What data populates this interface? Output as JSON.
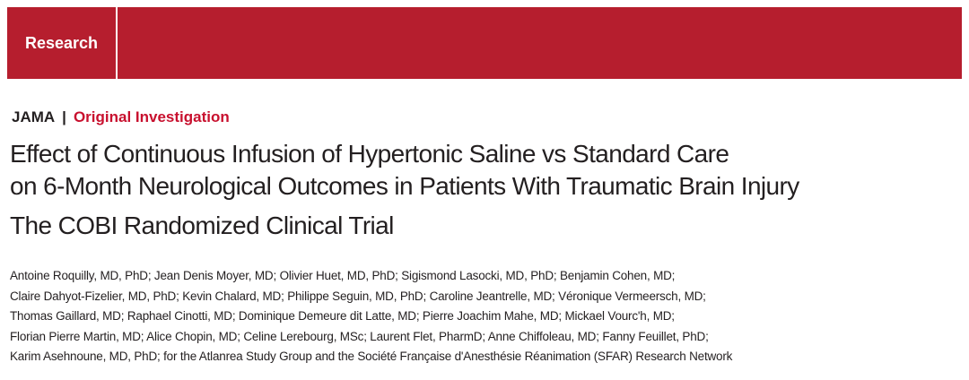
{
  "banner": {
    "label": "Research",
    "background_color": "#b61e2e"
  },
  "journal": {
    "name": "JAMA",
    "separator": "|",
    "article_type": "Original Investigation",
    "article_type_color": "#c8102e"
  },
  "article": {
    "title_lines": [
      "Effect of Continuous Infusion of Hypertonic Saline vs Standard Care",
      "on 6-Month Neurological Outcomes in Patients With Traumatic Brain Injury"
    ],
    "subtitle": "The COBI Randomized Clinical Trial",
    "author_lines": [
      "Antoine Roquilly, MD, PhD; Jean Denis Moyer, MD; Olivier Huet, MD, PhD; Sigismond Lasocki, MD, PhD; Benjamin Cohen, MD;",
      "Claire Dahyot-Fizelier, MD, PhD; Kevin Chalard, MD; Philippe Seguin, MD, PhD; Caroline Jeantrelle, MD; Véronique Vermeersch, MD;",
      "Thomas Gaillard, MD; Raphael Cinotti, MD; Dominique Demeure dit Latte, MD; Pierre Joachim Mahe, MD; Mickael Vourc'h, MD;",
      "Florian Pierre Martin, MD; Alice Chopin, MD; Celine Lerebourg, MSc; Laurent Flet, PharmD; Anne Chiffoleau, MD; Fanny Feuillet, PhD;",
      "Karim Asehnoune, MD, PhD; for the Atlanrea Study Group and the Société Française d'Anesthésie Réanimation (SFAR) Research Network"
    ]
  }
}
